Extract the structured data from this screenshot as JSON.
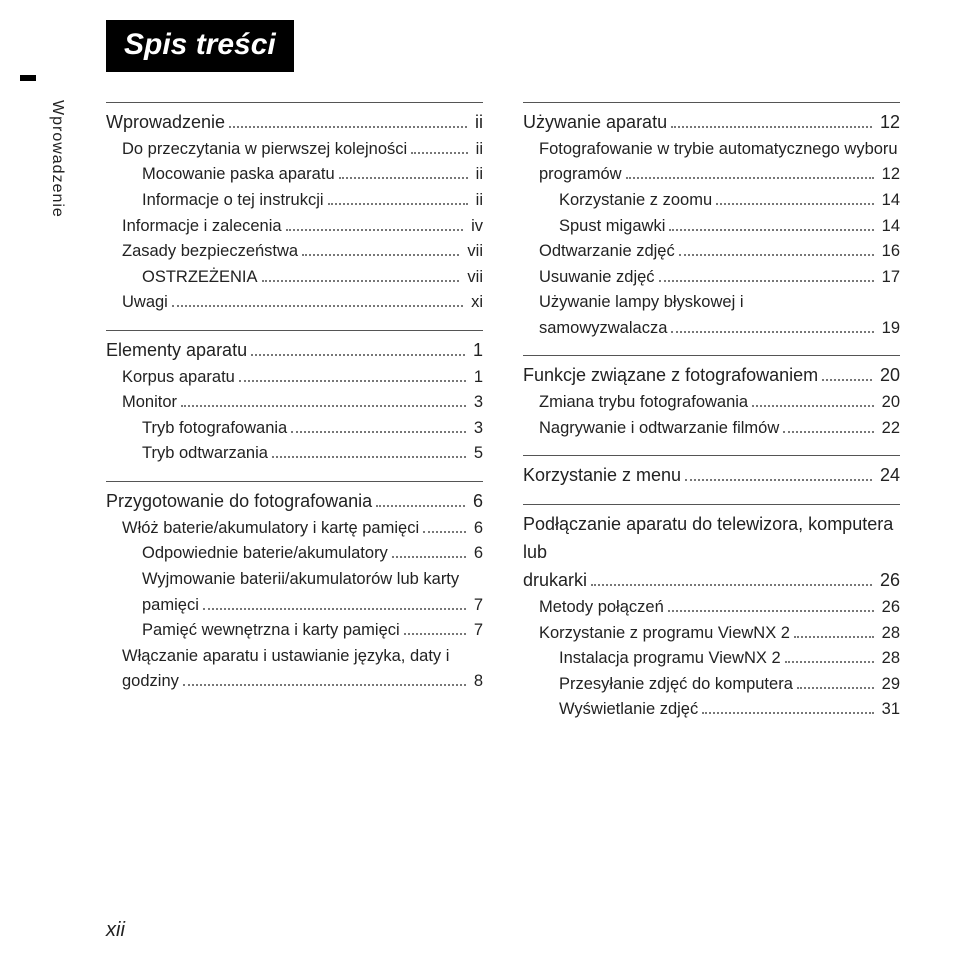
{
  "title": "Spis treści",
  "side_label": "Wprowadzenie",
  "footer_page": "xii",
  "left": [
    {
      "type": "section",
      "items": [
        {
          "lvl": 0,
          "hd": true,
          "label": "Wprowadzenie",
          "page": "ii"
        },
        {
          "lvl": 1,
          "label": "Do przeczytania w pierwszej kolejności",
          "page": "ii"
        },
        {
          "lvl": 2,
          "label": "Mocowanie paska aparatu",
          "page": "ii"
        },
        {
          "lvl": 2,
          "label": "Informacje o tej instrukcji",
          "page": "ii"
        },
        {
          "lvl": 1,
          "label": "Informacje i zalecenia",
          "page": "iv"
        },
        {
          "lvl": 1,
          "label": "Zasady bezpieczeństwa",
          "page": "vii"
        },
        {
          "lvl": 2,
          "label": "OSTRZEŻENIA",
          "page": "vii"
        },
        {
          "lvl": 1,
          "label": "Uwagi",
          "page": "xi"
        }
      ]
    },
    {
      "type": "section",
      "items": [
        {
          "lvl": 0,
          "hd": true,
          "label": "Elementy aparatu",
          "page": "1"
        },
        {
          "lvl": 1,
          "label": "Korpus aparatu",
          "page": "1"
        },
        {
          "lvl": 1,
          "label": "Monitor",
          "page": "3"
        },
        {
          "lvl": 2,
          "label": "Tryb fotografowania",
          "page": "3"
        },
        {
          "lvl": 2,
          "label": "Tryb odtwarzania",
          "page": "5"
        }
      ]
    },
    {
      "type": "section",
      "items": [
        {
          "lvl": 0,
          "hd": true,
          "label": "Przygotowanie do fotografowania",
          "page": "6"
        },
        {
          "lvl": 1,
          "label": "Włóż baterie/akumulatory i kartę pamięci",
          "page": "6"
        },
        {
          "lvl": 2,
          "label": "Odpowiednie baterie/akumulatory",
          "page": "6"
        },
        {
          "lvl": 2,
          "wrap": true,
          "label": "Wyjmowanie baterii/akumulatorów lub karty pamięci",
          "page": "7"
        },
        {
          "lvl": 2,
          "label": "Pamięć wewnętrzna i karty pamięci",
          "page": "7"
        },
        {
          "lvl": 1,
          "wrap": true,
          "label": "Włączanie aparatu i ustawianie języka, daty i godziny",
          "page": "8"
        }
      ]
    }
  ],
  "right": [
    {
      "type": "section",
      "items": [
        {
          "lvl": 0,
          "hd": true,
          "label": "Używanie aparatu",
          "page": "12"
        },
        {
          "lvl": 1,
          "wrap": true,
          "label": "Fotografowanie w trybie automatycznego wyboru programów",
          "page": "12"
        },
        {
          "lvl": 2,
          "label": "Korzystanie z zoomu",
          "page": "14"
        },
        {
          "lvl": 2,
          "label": "Spust migawki",
          "page": "14"
        },
        {
          "lvl": 1,
          "label": "Odtwarzanie zdjęć",
          "page": "16"
        },
        {
          "lvl": 1,
          "label": "Usuwanie zdjęć",
          "page": "17"
        },
        {
          "lvl": 1,
          "wrap": true,
          "label": "Używanie lampy błyskowej i samowyzwalacza",
          "page": "19"
        }
      ]
    },
    {
      "type": "section",
      "items": [
        {
          "lvl": 0,
          "hd": true,
          "label": "Funkcje związane z fotografowaniem",
          "page": "20"
        },
        {
          "lvl": 1,
          "label": "Zmiana trybu fotografowania",
          "page": "20"
        },
        {
          "lvl": 1,
          "label": "Nagrywanie i odtwarzanie filmów",
          "page": "22"
        }
      ]
    },
    {
      "type": "section",
      "items": [
        {
          "lvl": 0,
          "hd": true,
          "label": "Korzystanie z menu",
          "page": "24"
        }
      ]
    },
    {
      "type": "section",
      "items": [
        {
          "lvl": 0,
          "hd": true,
          "wrap": true,
          "label": "Podłączanie aparatu do telewizora, komputera lub drukarki",
          "page": "26"
        },
        {
          "lvl": 1,
          "label": "Metody połączeń",
          "page": "26"
        },
        {
          "lvl": 1,
          "label": "Korzystanie z programu ViewNX 2",
          "page": "28"
        },
        {
          "lvl": 2,
          "label": "Instalacja programu ViewNX 2",
          "page": "28"
        },
        {
          "lvl": 2,
          "label": "Przesyłanie zdjęć do komputera",
          "page": "29"
        },
        {
          "lvl": 2,
          "label": "Wyświetlanie zdjęć",
          "page": "31"
        }
      ]
    }
  ]
}
